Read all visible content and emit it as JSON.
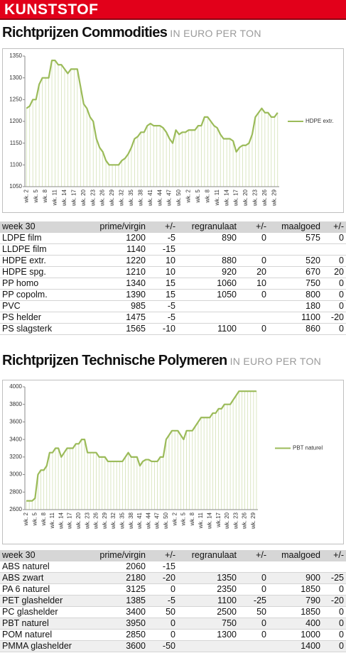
{
  "header": "KUNSTSTOF",
  "sections": [
    {
      "title": "Richtprijzen Commodities",
      "unit": "IN EURO PER TON",
      "table": {
        "columns": [
          "week 30",
          "prime/virgin",
          "+/-",
          "regranulaat",
          "+/-",
          "maalgoed",
          "+/-"
        ],
        "rows": [
          [
            "LDPE film",
            1200,
            -5,
            890,
            0,
            575,
            0
          ],
          [
            "LLDPE film",
            1140,
            -15,
            null,
            null,
            null,
            null
          ],
          [
            "HDPE extr.",
            1220,
            10,
            880,
            0,
            520,
            0
          ],
          [
            "HDPE spg.",
            1210,
            10,
            920,
            20,
            670,
            20
          ],
          [
            "PP homo",
            1340,
            15,
            1060,
            10,
            750,
            0
          ],
          [
            "PP copolm.",
            1390,
            15,
            1050,
            0,
            800,
            0
          ],
          [
            "PVC",
            985,
            -5,
            null,
            null,
            180,
            0
          ],
          [
            "PS helder",
            1475,
            -5,
            null,
            null,
            1100,
            -20
          ],
          [
            "PS slagsterk",
            1565,
            -10,
            1100,
            0,
            860,
            0
          ]
        ]
      }
    },
    {
      "title": "Richtprijzen Technische Polymeren",
      "unit": "IN EURO PER TON",
      "table": {
        "columns": [
          "week 30",
          "prime/virgin",
          "+/-",
          "regranulaat",
          "+/-",
          "maalgoed",
          "+/-"
        ],
        "rows": [
          [
            "ABS naturel",
            2060,
            -15,
            null,
            null,
            null,
            null
          ],
          [
            "ABS zwart",
            2180,
            -20,
            1350,
            0,
            900,
            -25
          ],
          [
            "PA 6 naturel",
            3125,
            0,
            2350,
            0,
            1850,
            0
          ],
          [
            "PET glashelder",
            1385,
            -5,
            1100,
            -25,
            790,
            -20
          ],
          [
            "PC glashelder",
            3400,
            50,
            2500,
            50,
            1850,
            0
          ],
          [
            "PBT naturel",
            3950,
            0,
            750,
            0,
            400,
            0
          ],
          [
            "POM naturel",
            2850,
            0,
            1300,
            0,
            1000,
            0
          ],
          [
            "PMMA glashelder",
            3600,
            -50,
            null,
            null,
            1400,
            0
          ]
        ]
      }
    }
  ],
  "chart_data": [
    {
      "type": "line",
      "drop_lines": true,
      "legend": "right",
      "categories": [
        "wk. 2",
        null,
        null,
        "wk. 5",
        null,
        null,
        "wk. 8",
        null,
        null,
        "wk. 11",
        null,
        null,
        "wk. 14",
        null,
        null,
        "wk. 17",
        null,
        null,
        "wk. 20",
        null,
        null,
        "wk. 23",
        null,
        null,
        "wk. 26",
        null,
        null,
        "wk. 29",
        null,
        null,
        "wk. 32",
        null,
        null,
        "wk. 35",
        null,
        null,
        "wk. 38",
        null,
        null,
        "wk. 41",
        null,
        null,
        "wk. 44",
        null,
        null,
        "wk. 47",
        null,
        null,
        "wk. 50",
        null,
        null,
        "wk. 2",
        null,
        null,
        "wk. 5",
        null,
        null,
        "wk. 8",
        null,
        null,
        "wk. 11",
        null,
        null,
        "wk. 14",
        null,
        null,
        "wk. 17",
        null,
        null,
        "wk. 20",
        null,
        null,
        "wk. 23",
        null,
        null,
        "wk. 26",
        null,
        null,
        "wk. 29",
        null
      ],
      "series": [
        {
          "name": "HDPE extr.",
          "color": "#9bbb59",
          "values": [
            1230,
            1235,
            1250,
            1250,
            1285,
            1300,
            1300,
            1300,
            1340,
            1340,
            1330,
            1330,
            1320,
            1310,
            1320,
            1320,
            1320,
            1280,
            1240,
            1230,
            1210,
            1200,
            1160,
            1140,
            1130,
            1110,
            1100,
            1100,
            1100,
            1100,
            1110,
            1115,
            1125,
            1140,
            1160,
            1165,
            1175,
            1175,
            1190,
            1195,
            1190,
            1190,
            1190,
            1185,
            1175,
            1160,
            1150,
            1180,
            1170,
            1175,
            1175,
            1180,
            1180,
            1180,
            1190,
            1190,
            1210,
            1210,
            1200,
            1190,
            1185,
            1170,
            1160,
            1160,
            1160,
            1155,
            1130,
            1140,
            1145,
            1145,
            1150,
            1170,
            1210,
            1220,
            1230,
            1220,
            1220,
            1210,
            1210,
            1220
          ]
        }
      ],
      "ylim": [
        1050,
        1350
      ],
      "yticks": [
        1050,
        1100,
        1150,
        1200,
        1250,
        1300,
        1350
      ]
    },
    {
      "type": "line",
      "drop_lines": true,
      "legend": "right",
      "categories": [
        "wk. 2",
        null,
        null,
        "wk. 5",
        null,
        null,
        "wk. 8",
        null,
        null,
        "wk. 11",
        null,
        null,
        "wk. 14",
        null,
        null,
        "wk. 17",
        null,
        null,
        "wk. 20",
        null,
        null,
        "wk. 23",
        null,
        null,
        "wk. 26",
        null,
        null,
        "wk. 29",
        null,
        null,
        "wk. 32",
        null,
        null,
        "wk. 35",
        null,
        null,
        "wk. 38",
        null,
        null,
        "wk. 41",
        null,
        null,
        "wk. 44",
        null,
        null,
        "wk. 47",
        null,
        null,
        "wk. 50",
        null,
        null,
        "wk. 2",
        null,
        null,
        "wk. 5",
        null,
        null,
        "wk. 8",
        null,
        null,
        "wk. 11",
        null,
        null,
        "wk. 14",
        null,
        null,
        "wk.17",
        null,
        null,
        "wk. 20",
        null,
        null,
        "wk. 23",
        null,
        null,
        "wk. 26",
        null,
        null,
        "wk. 29",
        null
      ],
      "series": [
        {
          "name": "PBT naturel",
          "color": "#9bbb59",
          "values": [
            2700,
            2700,
            2700,
            2730,
            3000,
            3050,
            3050,
            3100,
            3250,
            3250,
            3300,
            3300,
            3200,
            3250,
            3300,
            3300,
            3300,
            3350,
            3350,
            3400,
            3400,
            3250,
            3250,
            3250,
            3250,
            3200,
            3200,
            3200,
            3150,
            3150,
            3150,
            3150,
            3150,
            3150,
            3200,
            3250,
            3200,
            3200,
            3200,
            3100,
            3150,
            3170,
            3170,
            3150,
            3150,
            3150,
            3200,
            3200,
            3400,
            3450,
            3500,
            3500,
            3500,
            3450,
            3400,
            3500,
            3500,
            3500,
            3550,
            3600,
            3650,
            3650,
            3650,
            3650,
            3700,
            3700,
            3750,
            3750,
            3800,
            3800,
            3800,
            3850,
            3900,
            3950,
            3950,
            3950,
            3950,
            3950,
            3950,
            3950
          ]
        }
      ],
      "ylim": [
        2600,
        4000
      ],
      "yticks": [
        2600,
        2800,
        3000,
        3200,
        3400,
        3600,
        3800,
        4000
      ]
    }
  ]
}
